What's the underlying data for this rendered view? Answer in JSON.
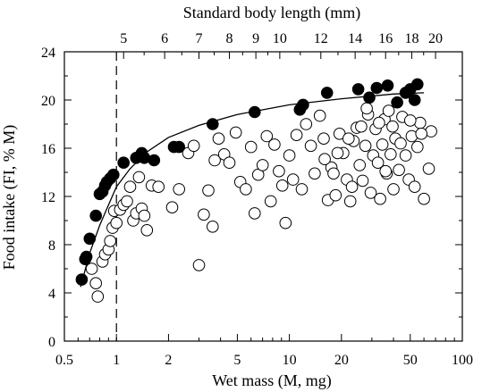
{
  "chart_data": {
    "type": "scatter",
    "title": "",
    "xlabel": "Wet mass (M, mg)",
    "ylabel": "Food intake (FI, % M)",
    "top_xlabel": "Standard body length (mm)",
    "xscale": "log",
    "xlim": [
      0.5,
      100
    ],
    "ylim": [
      0,
      24
    ],
    "x_ticks": [
      0.5,
      1,
      2,
      5,
      10,
      20,
      50,
      100
    ],
    "x_tick_labels": [
      "0.5",
      "1",
      "2",
      "5",
      "10",
      "20",
      "50",
      "100"
    ],
    "y_ticks": [
      0,
      4,
      8,
      12,
      16,
      20,
      24
    ],
    "y_tick_labels": [
      "0",
      "4",
      "8",
      "12",
      "16",
      "20",
      "24"
    ],
    "top_ticks": [
      {
        "label": "5",
        "x": 1.1
      },
      {
        "label": "6",
        "x": 1.9
      },
      {
        "label": "7",
        "x": 3.0
      },
      {
        "label": "8",
        "x": 4.5
      },
      {
        "label": "9",
        "x": 6.4
      },
      {
        "label": "10",
        "x": 8.8
      },
      {
        "label": "12",
        "x": 15.2
      },
      {
        "label": "14",
        "x": 24.0
      },
      {
        "label": "16",
        "x": 36.0
      },
      {
        "label": "18",
        "x": 51.0
      },
      {
        "label": "20",
        "x": 70.0
      }
    ],
    "reference_line": {
      "x": 1.0,
      "style": "dashed"
    },
    "fit_curve": {
      "style": "solid",
      "points": [
        [
          0.62,
          4.5
        ],
        [
          0.7,
          7.3
        ],
        [
          0.8,
          9.6
        ],
        [
          0.9,
          11.3
        ],
        [
          1.0,
          12.8
        ],
        [
          1.2,
          14.3
        ],
        [
          1.5,
          15.7
        ],
        [
          2.0,
          16.9
        ],
        [
          3.0,
          17.9
        ],
        [
          5.0,
          18.8
        ],
        [
          10.0,
          19.6
        ],
        [
          20.0,
          20.1
        ],
        [
          40.0,
          20.5
        ],
        [
          60.0,
          20.6
        ]
      ]
    },
    "series": [
      {
        "marker": "filled-circle",
        "points": [
          [
            0.63,
            5.1
          ],
          [
            0.66,
            6.8
          ],
          [
            0.67,
            7.0
          ],
          [
            0.7,
            8.5
          ],
          [
            0.76,
            10.4
          ],
          [
            0.8,
            12.2
          ],
          [
            0.83,
            12.4
          ],
          [
            0.86,
            12.9
          ],
          [
            0.88,
            13.2
          ],
          [
            0.92,
            13.5
          ],
          [
            0.96,
            13.8
          ],
          [
            1.1,
            14.8
          ],
          [
            1.3,
            15.2
          ],
          [
            1.4,
            15.6
          ],
          [
            1.45,
            15.2
          ],
          [
            1.65,
            15.0
          ],
          [
            2.15,
            16.1
          ],
          [
            2.3,
            16.1
          ],
          [
            3.6,
            18.0
          ],
          [
            6.3,
            19.0
          ],
          [
            11.5,
            19.2
          ],
          [
            12.0,
            19.6
          ],
          [
            16.5,
            20.6
          ],
          [
            25.0,
            20.9
          ],
          [
            29.0,
            20.2
          ],
          [
            32.0,
            21.0
          ],
          [
            37.0,
            21.2
          ],
          [
            42.0,
            19.8
          ],
          [
            47.0,
            20.6
          ],
          [
            50.0,
            20.9
          ],
          [
            53.0,
            20.0
          ],
          [
            55.0,
            21.3
          ]
        ]
      },
      {
        "marker": "open-circle",
        "points": [
          [
            0.72,
            6.0
          ],
          [
            0.76,
            4.8
          ],
          [
            0.78,
            3.7
          ],
          [
            0.83,
            6.6
          ],
          [
            0.86,
            7.2
          ],
          [
            0.9,
            7.6
          ],
          [
            0.92,
            8.3
          ],
          [
            0.95,
            9.4
          ],
          [
            0.97,
            10.8
          ],
          [
            1.0,
            9.8
          ],
          [
            1.05,
            10.9
          ],
          [
            1.1,
            11.3
          ],
          [
            1.15,
            11.6
          ],
          [
            1.2,
            12.8
          ],
          [
            1.25,
            10.0
          ],
          [
            1.3,
            10.6
          ],
          [
            1.35,
            13.6
          ],
          [
            1.4,
            11.0
          ],
          [
            1.45,
            10.4
          ],
          [
            1.5,
            9.2
          ],
          [
            1.6,
            12.9
          ],
          [
            1.75,
            12.8
          ],
          [
            2.1,
            11.1
          ],
          [
            2.3,
            12.6
          ],
          [
            2.6,
            15.6
          ],
          [
            2.8,
            16.2
          ],
          [
            3.0,
            6.3
          ],
          [
            3.2,
            10.5
          ],
          [
            3.4,
            12.5
          ],
          [
            3.6,
            9.5
          ],
          [
            3.7,
            15.0
          ],
          [
            3.9,
            16.8
          ],
          [
            4.2,
            15.5
          ],
          [
            4.5,
            14.8
          ],
          [
            4.9,
            17.3
          ],
          [
            5.2,
            13.2
          ],
          [
            5.6,
            12.6
          ],
          [
            6.0,
            16.1
          ],
          [
            6.3,
            10.6
          ],
          [
            6.6,
            13.8
          ],
          [
            7.0,
            14.6
          ],
          [
            7.4,
            17.0
          ],
          [
            7.8,
            11.6
          ],
          [
            8.2,
            16.3
          ],
          [
            8.7,
            14.1
          ],
          [
            9.1,
            12.9
          ],
          [
            9.5,
            9.8
          ],
          [
            10.0,
            15.4
          ],
          [
            10.5,
            13.4
          ],
          [
            11.0,
            17.1
          ],
          [
            11.8,
            12.6
          ],
          [
            12.5,
            18.0
          ],
          [
            13.3,
            16.2
          ],
          [
            14.0,
            13.9
          ],
          [
            15.0,
            18.7
          ],
          [
            15.8,
            16.8
          ],
          [
            16.7,
            11.7
          ],
          [
            17.5,
            14.4
          ],
          [
            18.5,
            12.1
          ],
          [
            19.5,
            17.2
          ],
          [
            20.5,
            15.6
          ],
          [
            21.5,
            13.4
          ],
          [
            22.5,
            11.6
          ],
          [
            23.5,
            16.6
          ],
          [
            24.5,
            17.7
          ],
          [
            25.5,
            14.6
          ],
          [
            26.5,
            13.3
          ],
          [
            27.5,
            16.2
          ],
          [
            28.5,
            18.8
          ],
          [
            29.5,
            12.3
          ],
          [
            30.5,
            15.4
          ],
          [
            31.5,
            17.6
          ],
          [
            32.5,
            14.8
          ],
          [
            33.5,
            11.8
          ],
          [
            34.5,
            16.3
          ],
          [
            35.5,
            18.4
          ],
          [
            36.5,
            13.9
          ],
          [
            37.5,
            19.1
          ],
          [
            38.5,
            15.5
          ],
          [
            39.5,
            17.8
          ],
          [
            41.0,
            16.8
          ],
          [
            43.0,
            14.2
          ],
          [
            45.0,
            18.6
          ],
          [
            47.0,
            15.4
          ],
          [
            49.0,
            13.4
          ],
          [
            51.0,
            17.0
          ],
          [
            53.0,
            12.8
          ],
          [
            55.0,
            16.1
          ],
          [
            57.0,
            18.1
          ],
          [
            60.0,
            11.8
          ],
          [
            64.0,
            14.3
          ],
          [
            66.0,
            17.4
          ],
          [
            28.0,
            19.3
          ],
          [
            33.0,
            18.1
          ],
          [
            36.0,
            14.1
          ],
          [
            19.0,
            15.6
          ],
          [
            22.0,
            16.8
          ],
          [
            23.0,
            12.8
          ],
          [
            26.0,
            17.8
          ],
          [
            16.0,
            15.1
          ],
          [
            18.0,
            13.9
          ],
          [
            40.0,
            12.6
          ],
          [
            44.0,
            16.4
          ],
          [
            50.0,
            18.3
          ],
          [
            58.0,
            17.2
          ]
        ]
      }
    ]
  }
}
